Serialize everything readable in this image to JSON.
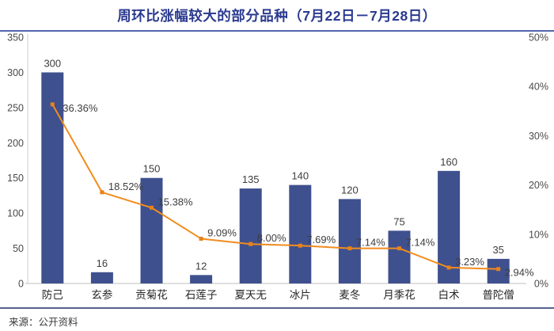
{
  "page": {
    "title": "周环比涨幅较大的部分品种（7月22日－7月28日）",
    "source": "来源：公开资料"
  },
  "chart_data": {
    "type": "bar",
    "subtype": "combo-bar-line-dual-axis",
    "title": "周环比涨幅较大的部分品种（7月22日－7月28日）",
    "categories": [
      "防己",
      "玄参",
      "贡菊花",
      "石莲子",
      "夏天无",
      "冰片",
      "麦冬",
      "月季花",
      "白术",
      "普陀僧"
    ],
    "series": [
      {
        "name": "bar-values-left-axis",
        "type": "bar",
        "values": [
          300,
          16,
          150,
          12,
          135,
          140,
          120,
          75,
          160,
          35
        ],
        "value_labels": [
          "300",
          "16",
          "150",
          "12",
          "135",
          "140",
          "120",
          "75",
          "160",
          "35"
        ]
      },
      {
        "name": "line-percent-right-axis",
        "type": "line",
        "values": [
          36.36,
          18.52,
          15.38,
          9.09,
          8.0,
          7.69,
          7.14,
          7.14,
          3.23,
          2.94
        ],
        "value_labels": [
          "36.36%",
          "18.52%",
          "15.38%",
          "9.09%",
          "8.00%",
          "7.69%",
          "7.14%",
          "7.14%",
          "3.23%",
          "2.94%"
        ]
      }
    ],
    "left_axis": {
      "min": 0,
      "max": 350,
      "ticks": [
        0,
        50,
        100,
        150,
        200,
        250,
        300,
        350
      ],
      "tick_labels": [
        "0",
        "50",
        "100",
        "150",
        "200",
        "250",
        "300",
        "350"
      ]
    },
    "right_axis": {
      "min": 0,
      "max": 50,
      "ticks": [
        0,
        10,
        20,
        30,
        40,
        50
      ],
      "tick_labels": [
        "0%",
        "10%",
        "20%",
        "30%",
        "40%",
        "50%"
      ]
    },
    "grid": false,
    "legend": "none",
    "colors": {
      "bar": "#3F508E",
      "line": "#F28C1E",
      "marker": "#E8821A",
      "title": "#2B3A8F",
      "rule_top": "#5265AC",
      "rule_bottom": "#54618F",
      "axis_line": "#CCCCCC",
      "tick_text": "#4A4A4A",
      "category_text": "#262626",
      "value_text": "#3D3D3D"
    },
    "source": "来源：公开资料"
  }
}
